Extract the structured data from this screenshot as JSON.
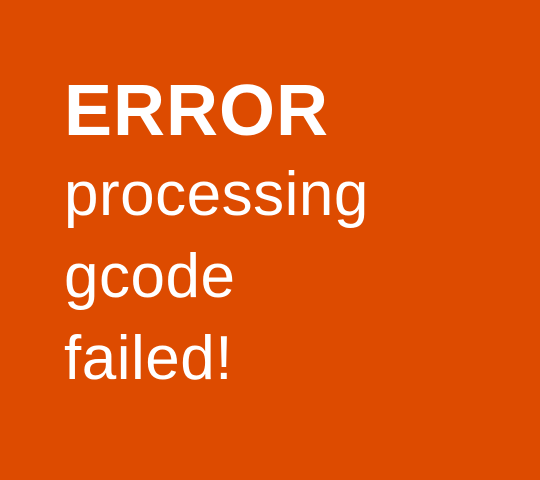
{
  "screen": {
    "background_color": "#DD4B00",
    "text_color": "#FFFFFF"
  },
  "message": {
    "title": "ERROR",
    "lines": [
      "processing",
      "gcode",
      "failed!"
    ]
  }
}
